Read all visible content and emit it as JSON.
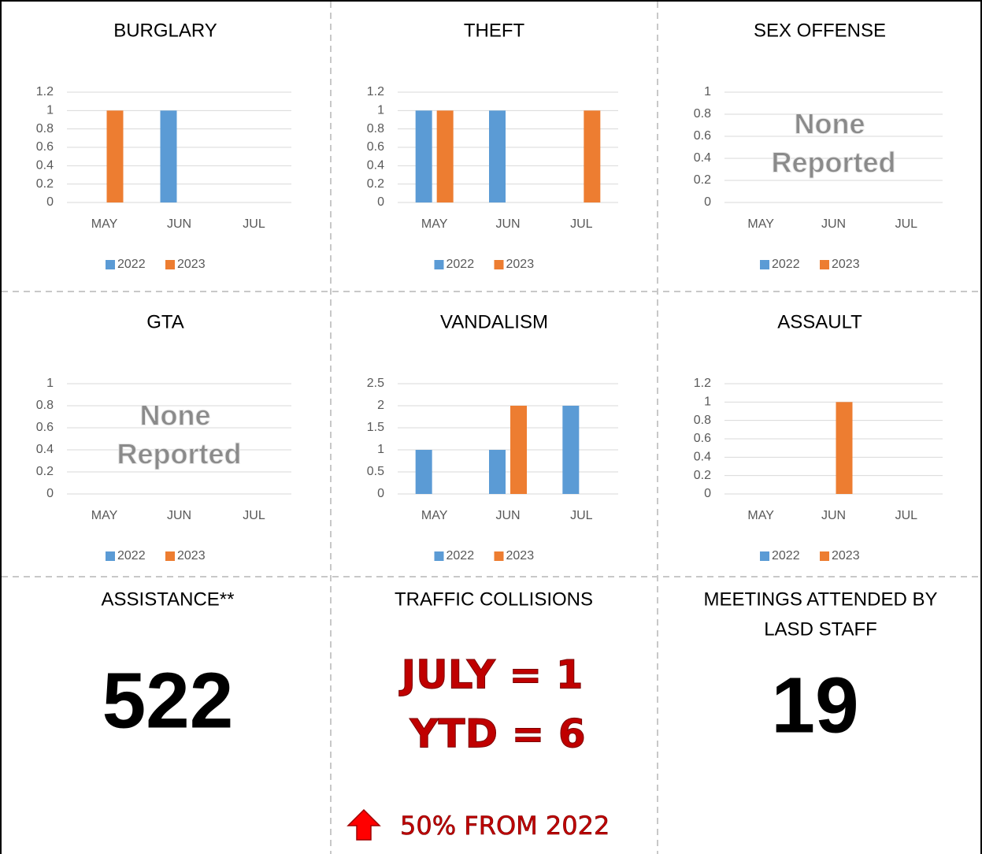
{
  "chart_data": [
    {
      "type": "bar",
      "title": "BURGLARY",
      "categories": [
        "MAY",
        "JUN",
        "JUL"
      ],
      "series": [
        {
          "name": "2022",
          "color": "#5b9bd5",
          "values": [
            0,
            1,
            0
          ]
        },
        {
          "name": "2023",
          "color": "#ed7d31",
          "values": [
            1,
            0,
            0
          ]
        }
      ],
      "ylim": [
        0,
        1.2
      ],
      "yticks": [
        0,
        0.2,
        0.4,
        0.6,
        0.8,
        1,
        1.2
      ],
      "grid": true,
      "legend": "bottom"
    },
    {
      "type": "bar",
      "title": "THEFT",
      "categories": [
        "MAY",
        "JUN",
        "JUL"
      ],
      "series": [
        {
          "name": "2022",
          "color": "#5b9bd5",
          "values": [
            1,
            1,
            0
          ]
        },
        {
          "name": "2023",
          "color": "#ed7d31",
          "values": [
            1,
            0,
            1
          ]
        }
      ],
      "ylim": [
        0,
        1.2
      ],
      "yticks": [
        0,
        0.2,
        0.4,
        0.6,
        0.8,
        1,
        1.2
      ],
      "grid": true,
      "legend": "bottom"
    },
    {
      "type": "bar",
      "title": "SEX OFFENSE",
      "categories": [
        "MAY",
        "JUN",
        "JUL"
      ],
      "series": [
        {
          "name": "2022",
          "color": "#5b9bd5",
          "values": [
            0,
            0,
            0
          ]
        },
        {
          "name": "2023",
          "color": "#ed7d31",
          "values": [
            0,
            0,
            0
          ]
        }
      ],
      "ylim": [
        0,
        1
      ],
      "yticks": [
        0,
        0.2,
        0.4,
        0.6,
        0.8,
        1
      ],
      "grid": true,
      "legend": "bottom",
      "annotation": [
        "None",
        "Reported"
      ]
    },
    {
      "type": "bar",
      "title": "GTA",
      "categories": [
        "MAY",
        "JUN",
        "JUL"
      ],
      "series": [
        {
          "name": "2022",
          "color": "#5b9bd5",
          "values": [
            0,
            0,
            0
          ]
        },
        {
          "name": "2023",
          "color": "#ed7d31",
          "values": [
            0,
            0,
            0
          ]
        }
      ],
      "ylim": [
        0,
        1
      ],
      "yticks": [
        0,
        0.2,
        0.4,
        0.6,
        0.8,
        1
      ],
      "grid": true,
      "legend": "bottom",
      "annotation": [
        "None",
        "Reported"
      ]
    },
    {
      "type": "bar",
      "title": "VANDALISM",
      "categories": [
        "MAY",
        "JUN",
        "JUL"
      ],
      "series": [
        {
          "name": "2022",
          "color": "#5b9bd5",
          "values": [
            1,
            1,
            2
          ]
        },
        {
          "name": "2023",
          "color": "#ed7d31",
          "values": [
            0,
            2,
            0
          ]
        }
      ],
      "ylim": [
        0,
        2.5
      ],
      "yticks": [
        0,
        0.5,
        1,
        1.5,
        2,
        2.5
      ],
      "grid": true,
      "legend": "bottom"
    },
    {
      "type": "bar",
      "title": "ASSAULT",
      "categories": [
        "MAY",
        "JUN",
        "JUL"
      ],
      "series": [
        {
          "name": "2022",
          "color": "#5b9bd5",
          "values": [
            0,
            0,
            0
          ]
        },
        {
          "name": "2023",
          "color": "#ed7d31",
          "values": [
            0,
            1,
            0
          ]
        }
      ],
      "ylim": [
        0,
        1.2
      ],
      "yticks": [
        0,
        0.2,
        0.4,
        0.6,
        0.8,
        1,
        1.2
      ],
      "grid": true,
      "legend": "bottom"
    }
  ],
  "stats": {
    "assistance": {
      "title": "ASSISTANCE**",
      "value": 522
    },
    "collisions": {
      "title": "TRAFFIC COLLISIONS",
      "lines": [
        "JULY = 1",
        "YTD = 6"
      ],
      "change": "50% FROM 2022"
    },
    "meetings": {
      "title": [
        "MEETINGS ATTENDED BY",
        "LASD STAFF"
      ],
      "value": 19
    }
  }
}
